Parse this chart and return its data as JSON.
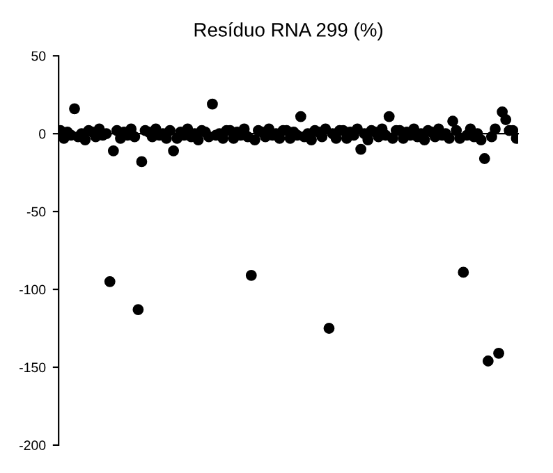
{
  "chart_data": {
    "type": "scatter",
    "title": "Resíduo RNA 299 (%)",
    "categories": [
      null,
      null,
      null,
      null,
      null,
      null,
      null,
      null,
      null,
      null,
      null,
      null,
      null,
      null,
      null,
      null,
      null,
      null,
      null,
      null,
      null,
      null,
      null,
      null,
      null,
      null,
      null,
      null,
      null,
      null,
      null,
      null,
      null,
      null,
      null,
      null,
      null,
      null,
      null,
      null,
      null,
      null,
      null,
      null,
      null,
      null,
      null,
      null,
      null,
      null,
      null,
      null,
      null,
      null,
      null,
      null,
      null,
      null,
      null,
      null,
      null,
      null,
      null,
      null,
      null,
      null,
      null,
      null,
      null,
      null,
      null,
      null,
      null,
      null,
      null,
      null,
      null,
      null,
      null,
      null,
      null,
      null,
      null,
      null,
      null,
      null,
      null,
      null,
      null,
      null,
      null,
      null,
      null,
      null,
      null,
      null,
      null,
      null,
      null,
      null,
      null,
      null,
      null,
      null,
      null,
      null,
      null,
      null,
      null,
      null,
      null,
      null,
      null,
      null,
      null,
      null,
      null,
      null,
      null,
      null,
      null,
      null,
      null,
      null,
      null,
      null,
      null,
      null,
      null,
      null
    ],
    "series": [
      {
        "color": "#000000",
        "values": [
          2,
          -3,
          1,
          -1,
          16,
          -2,
          0,
          -4,
          2,
          1,
          -2,
          3,
          -1,
          0,
          -95,
          -11,
          2,
          -3,
          1,
          -1,
          3,
          -2,
          -113,
          -18,
          2,
          1,
          -2,
          3,
          -1,
          0,
          -3,
          2,
          -11,
          -3,
          1,
          -1,
          3,
          -2,
          0,
          -4,
          2,
          1,
          -2,
          19,
          -1,
          0,
          -3,
          2,
          2,
          -3,
          1,
          -1,
          3,
          -2,
          -91,
          -4,
          2,
          1,
          -2,
          3,
          -1,
          0,
          -3,
          2,
          2,
          -3,
          1,
          -1,
          11,
          -2,
          0,
          -4,
          2,
          1,
          -2,
          3,
          -125,
          0,
          -3,
          2,
          2,
          -3,
          1,
          -1,
          3,
          -10,
          0,
          -4,
          2,
          1,
          -2,
          3,
          -1,
          11,
          -3,
          2,
          2,
          -3,
          1,
          -1,
          3,
          -2,
          0,
          -4,
          2,
          1,
          -2,
          3,
          -1,
          0,
          -3,
          8,
          2,
          -3,
          -89,
          -1,
          3,
          -2,
          0,
          -4,
          -16,
          -146,
          -2,
          3,
          -141,
          14,
          9,
          2,
          2,
          -3
        ]
      }
    ],
    "ylim": [
      -200,
      50
    ],
    "yticks": [
      -200,
      -150,
      -100,
      -50,
      0,
      50
    ],
    "marker": "circle",
    "tick_labels": "y"
  }
}
